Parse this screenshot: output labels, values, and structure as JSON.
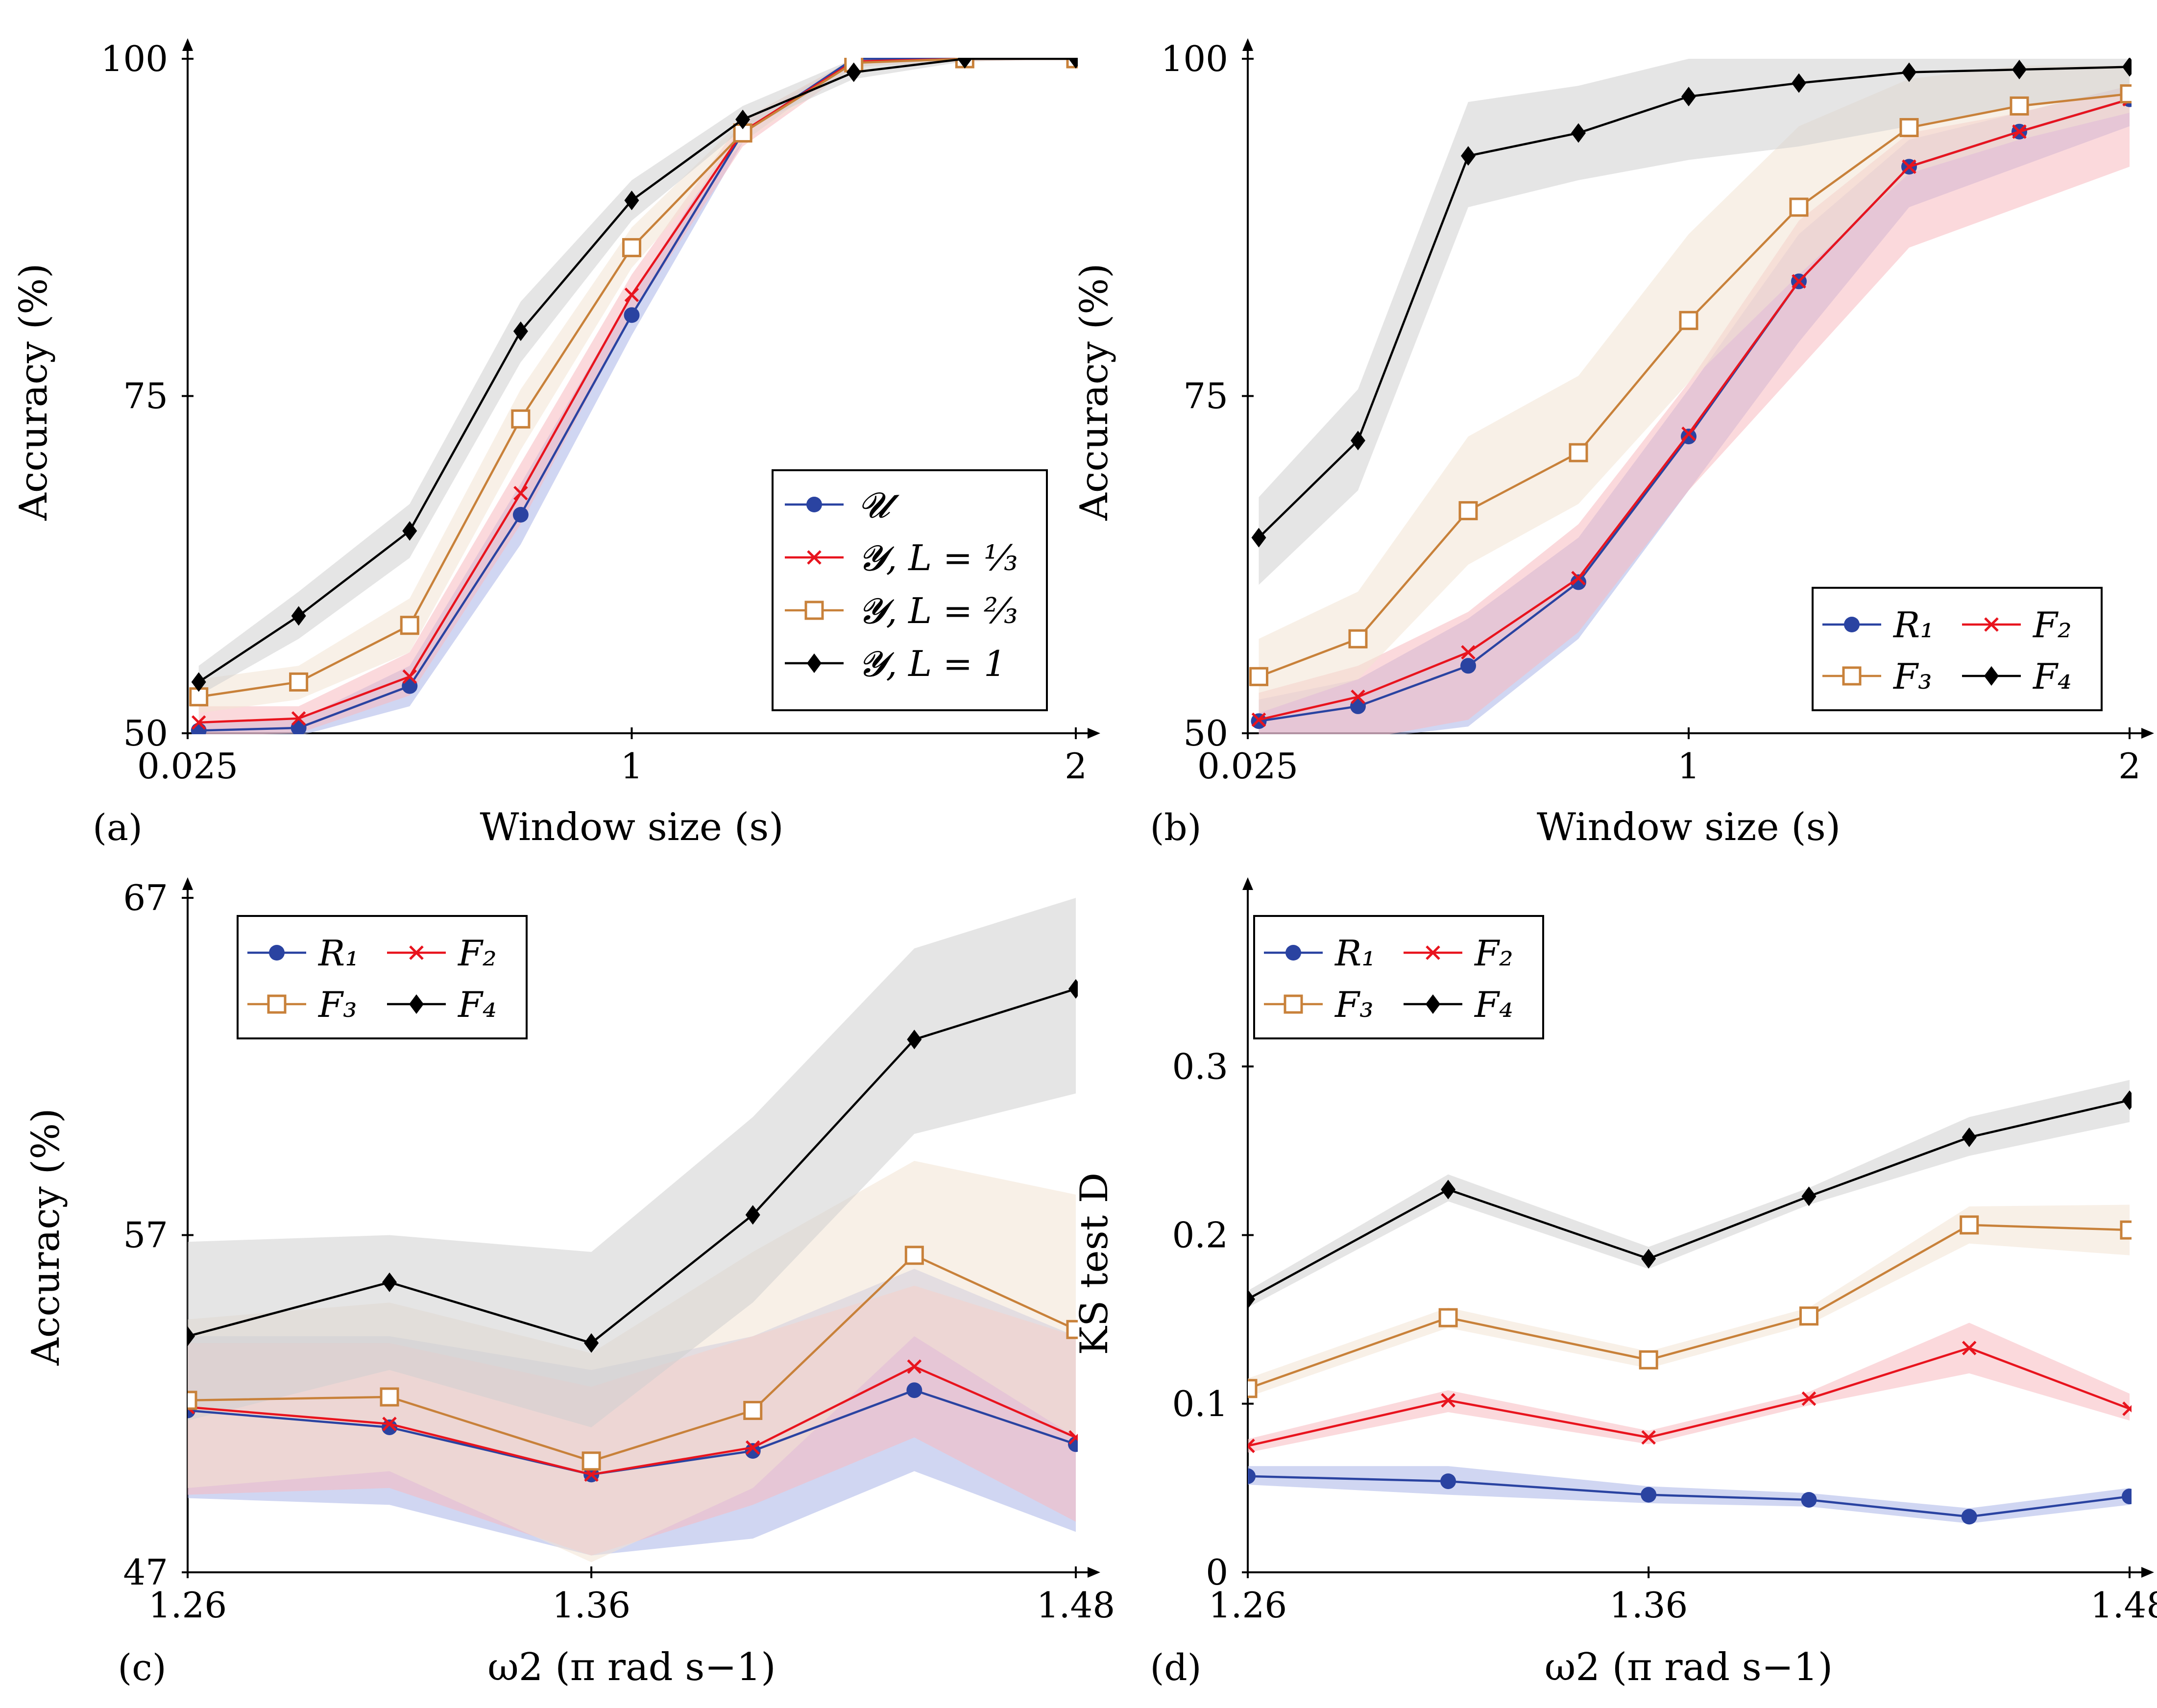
{
  "colors": {
    "blue": "#2a43a1",
    "red": "#e8141e",
    "orange": "#c8813a",
    "black": "#000000",
    "band_blue": "#aab4e8",
    "band_red": "#f7b9bf",
    "band_orange": "#f3e3d3",
    "band_black": "#cfcfcf"
  },
  "chart_data": [
    {
      "id": "a",
      "panel_label": "(a)",
      "type": "line",
      "xlabel": "Window size (s)",
      "ylabel": "Accuracy (%)",
      "xlim": [
        0,
        2
      ],
      "ylim": [
        50,
        100
      ],
      "xticks": [
        0,
        1,
        2
      ],
      "xtick_labels": [
        "0.025",
        "1",
        "2"
      ],
      "yticks": [
        50,
        75,
        100
      ],
      "ytick_labels": [
        "50",
        "75",
        "100"
      ],
      "legend_position": "bottom-right",
      "x": [
        0.025,
        0.25,
        0.5,
        0.75,
        1.0,
        1.25,
        1.5,
        1.75,
        2.0
      ],
      "series": [
        {
          "name": "U",
          "legend_text": "𝓤",
          "color_key": "blue",
          "marker": "circle",
          "values": [
            50.2,
            50.4,
            53.5,
            66.2,
            81.0,
            94.5,
            100,
            100,
            100
          ],
          "band": [
            [
              49.6,
              50.8
            ],
            [
              49.8,
              51.0
            ],
            [
              52.0,
              55.0
            ],
            [
              64.0,
              68.5
            ],
            [
              79.5,
              82.5
            ],
            [
              93.8,
              95.2
            ],
            [
              99.8,
              100
            ],
            [
              100,
              100
            ],
            [
              100,
              100
            ]
          ]
        },
        {
          "name": "Y, L = 1/3",
          "legend_text": "𝓨, L = ⅓",
          "color_key": "red",
          "marker": "cross",
          "values": [
            50.8,
            51.1,
            54.2,
            67.8,
            82.5,
            94.6,
            99.8,
            100,
            100
          ],
          "band": [
            [
              49.8,
              52.0
            ],
            [
              50.0,
              52.0
            ],
            [
              52.8,
              56.0
            ],
            [
              65.5,
              70.0
            ],
            [
              81.0,
              84.0
            ],
            [
              93.5,
              95.5
            ],
            [
              99.4,
              100
            ],
            [
              99.8,
              100
            ],
            [
              100,
              100
            ]
          ]
        },
        {
          "name": "Y, L = 2/3",
          "legend_text": "𝓨, L = ⅔",
          "color_key": "orange",
          "marker": "square",
          "values": [
            52.7,
            53.8,
            58.0,
            73.3,
            86.0,
            94.5,
            99.7,
            100,
            100
          ],
          "band": [
            [
              51.5,
              54.0
            ],
            [
              52.5,
              55.0
            ],
            [
              56.0,
              60.0
            ],
            [
              71.0,
              75.5
            ],
            [
              84.5,
              87.5
            ],
            [
              93.8,
              95.5
            ],
            [
              99.4,
              100
            ],
            [
              99.8,
              100
            ],
            [
              100,
              100
            ]
          ]
        },
        {
          "name": "Y, L = 1",
          "legend_text": "𝓨, L = 1",
          "color_key": "black",
          "marker": "diamond",
          "values": [
            53.8,
            58.7,
            65.0,
            79.8,
            89.5,
            95.5,
            99.0,
            100,
            100
          ],
          "band": [
            [
              52.8,
              55.0
            ],
            [
              57.0,
              60.5
            ],
            [
              63.0,
              67.0
            ],
            [
              77.5,
              82.0
            ],
            [
              88.0,
              91.0
            ],
            [
              94.8,
              96.5
            ],
            [
              98.5,
              100
            ],
            [
              99.8,
              100
            ],
            [
              100,
              100
            ]
          ]
        }
      ]
    },
    {
      "id": "b",
      "panel_label": "(b)",
      "type": "line",
      "xlabel": "Window size (s)",
      "ylabel": "Accuracy (%)",
      "xlim": [
        0,
        2
      ],
      "ylim": [
        50,
        100
      ],
      "xticks": [
        0,
        1,
        2
      ],
      "xtick_labels": [
        "0.025",
        "1",
        "2"
      ],
      "yticks": [
        50,
        75,
        100
      ],
      "ytick_labels": [
        "50",
        "75",
        "100"
      ],
      "legend_position": "bottom-right",
      "x": [
        0.025,
        0.25,
        0.5,
        0.75,
        1.0,
        1.25,
        1.5,
        1.75,
        2.0
      ],
      "series": [
        {
          "name": "R1",
          "legend_text": "R₁",
          "color_key": "blue",
          "marker": "circle",
          "values": [
            50.9,
            52.0,
            55.0,
            61.2,
            72.0,
            83.5,
            92.0,
            94.6,
            97.0
          ],
          "band": [
            [
              49.0,
              52.5
            ],
            [
              49.5,
              54.0
            ],
            [
              50.5,
              58.5
            ],
            [
              57.0,
              64.5
            ],
            [
              68.0,
              75.5
            ],
            [
              79.0,
              87.0
            ],
            [
              89.0,
              94.0
            ],
            [
              92.0,
              96.0
            ],
            [
              95.0,
              98.0
            ]
          ]
        },
        {
          "name": "F2",
          "legend_text": "F₂",
          "color_key": "red",
          "marker": "cross",
          "values": [
            51.0,
            52.7,
            56.0,
            61.5,
            72.2,
            83.5,
            92.0,
            94.6,
            97.0
          ],
          "band": [
            [
              49.0,
              53.0
            ],
            [
              49.5,
              55.0
            ],
            [
              51.0,
              59.0
            ],
            [
              57.5,
              65.5
            ],
            [
              68.0,
              76.0
            ],
            [
              77.0,
              88.0
            ],
            [
              86.0,
              94.5
            ],
            [
              89.0,
              96.0
            ],
            [
              92.0,
              98.0
            ]
          ]
        },
        {
          "name": "F3",
          "legend_text": "F₃",
          "color_key": "orange",
          "marker": "square",
          "values": [
            54.2,
            57.0,
            66.5,
            70.8,
            80.6,
            89.0,
            94.9,
            96.5,
            97.4
          ],
          "band": [
            [
              51.5,
              57.0
            ],
            [
              54.0,
              60.5
            ],
            [
              62.5,
              72.0
            ],
            [
              67.0,
              76.5
            ],
            [
              76.0,
              87.0
            ],
            [
              84.0,
              95.0
            ],
            [
              91.5,
              98.5
            ],
            [
              94.0,
              99.5
            ],
            [
              96.0,
              99.5
            ]
          ]
        },
        {
          "name": "F4",
          "legend_text": "F₄",
          "color_key": "black",
          "marker": "diamond",
          "values": [
            64.5,
            71.7,
            92.8,
            94.5,
            97.2,
            98.2,
            99.0,
            99.2,
            99.4
          ],
          "band": [
            [
              61.0,
              67.5
            ],
            [
              68.0,
              75.5
            ],
            [
              89.0,
              96.8
            ],
            [
              91.0,
              98.0
            ],
            [
              92.5,
              100
            ],
            [
              93.5,
              100
            ],
            [
              95.0,
              100
            ],
            [
              96.5,
              100
            ],
            [
              97.5,
              100
            ]
          ]
        }
      ]
    },
    {
      "id": "c",
      "panel_label": "(c)",
      "type": "line",
      "xlabel": "ω2 (π rad s−1)",
      "ylabel": "Accuracy (%)",
      "xlim": [
        1.26,
        1.48
      ],
      "ylim": [
        47,
        67
      ],
      "xticks": [
        1.26,
        1.36,
        1.48
      ],
      "xtick_labels": [
        "1.26",
        "1.36",
        "1.48"
      ],
      "yticks": [
        47,
        57,
        67
      ],
      "ytick_labels": [
        "47",
        "57",
        "67"
      ],
      "legend_position": "top-left",
      "x": [
        1.26,
        1.31,
        1.36,
        1.4,
        1.44,
        1.48
      ],
      "series": [
        {
          "name": "R1",
          "legend_text": "R₁",
          "color_key": "blue",
          "marker": "circle",
          "values": [
            51.8,
            51.3,
            49.9,
            50.6,
            52.4,
            50.8
          ],
          "band": [
            [
              49.2,
              54.0
            ],
            [
              49.0,
              54.0
            ],
            [
              47.5,
              53.0
            ],
            [
              48.0,
              54.0
            ],
            [
              50.0,
              56.0
            ],
            [
              48.2,
              54.0
            ]
          ]
        },
        {
          "name": "F2",
          "legend_text": "F₂",
          "color_key": "red",
          "marker": "cross",
          "values": [
            51.9,
            51.4,
            49.9,
            50.7,
            53.1,
            51.0
          ],
          "band": [
            [
              49.3,
              53.8
            ],
            [
              49.5,
              53.8
            ],
            [
              47.5,
              52.5
            ],
            [
              49.0,
              54.0
            ],
            [
              51.0,
              55.5
            ],
            [
              48.5,
              54.0
            ]
          ]
        },
        {
          "name": "F3",
          "legend_text": "F₃",
          "color_key": "orange",
          "marker": "square",
          "values": [
            52.1,
            52.2,
            50.3,
            51.8,
            56.4,
            54.2
          ],
          "band": [
            [
              49.5,
              54.5
            ],
            [
              50.0,
              55.0
            ],
            [
              47.3,
              53.5
            ],
            [
              49.5,
              56.5
            ],
            [
              54.0,
              59.2
            ],
            [
              51.0,
              58.2
            ]
          ]
        },
        {
          "name": "F4",
          "legend_text": "F₄",
          "color_key": "black",
          "marker": "diamond",
          "values": [
            54.0,
            55.6,
            53.8,
            57.6,
            62.8,
            64.3
          ],
          "band": [
            [
              51.5,
              56.8
            ],
            [
              53.0,
              57.0
            ],
            [
              51.3,
              56.5
            ],
            [
              55.0,
              60.5
            ],
            [
              60.0,
              65.5
            ],
            [
              61.2,
              67.0
            ]
          ]
        }
      ]
    },
    {
      "id": "d",
      "panel_label": "(d)",
      "type": "line",
      "xlabel": "ω2 (π rad s−1)",
      "ylabel": "KS test D",
      "xlim": [
        1.26,
        1.48
      ],
      "ylim": [
        0,
        0.4
      ],
      "xticks": [
        1.26,
        1.36,
        1.48
      ],
      "xtick_labels": [
        "1.26",
        "1.36",
        "1.48"
      ],
      "yticks": [
        0,
        0.1,
        0.2,
        0.3
      ],
      "ytick_labels": [
        "0",
        "0.1",
        "0.2",
        "0.3"
      ],
      "legend_position": "top-left",
      "x": [
        1.26,
        1.31,
        1.36,
        1.4,
        1.44,
        1.48
      ],
      "series": [
        {
          "name": "R1",
          "legend_text": "R₁",
          "color_key": "blue",
          "marker": "circle",
          "values": [
            0.057,
            0.054,
            0.046,
            0.043,
            0.033,
            0.045
          ],
          "band": [
            [
              0.052,
              0.063
            ],
            [
              0.046,
              0.063
            ],
            [
              0.041,
              0.051
            ],
            [
              0.039,
              0.047
            ],
            [
              0.029,
              0.038
            ],
            [
              0.04,
              0.05
            ]
          ]
        },
        {
          "name": "F2",
          "legend_text": "F₂",
          "color_key": "red",
          "marker": "cross",
          "values": [
            0.075,
            0.102,
            0.08,
            0.103,
            0.133,
            0.097
          ],
          "band": [
            [
              0.071,
              0.079
            ],
            [
              0.095,
              0.108
            ],
            [
              0.076,
              0.084
            ],
            [
              0.099,
              0.107
            ],
            [
              0.118,
              0.148
            ],
            [
              0.09,
              0.106
            ]
          ]
        },
        {
          "name": "F3",
          "legend_text": "F₃",
          "color_key": "orange",
          "marker": "square",
          "values": [
            0.109,
            0.151,
            0.126,
            0.152,
            0.206,
            0.203
          ],
          "band": [
            [
              0.104,
              0.115
            ],
            [
              0.145,
              0.157
            ],
            [
              0.121,
              0.131
            ],
            [
              0.147,
              0.157
            ],
            [
              0.195,
              0.217
            ],
            [
              0.188,
              0.218
            ]
          ]
        },
        {
          "name": "F4",
          "legend_text": "F₄",
          "color_key": "black",
          "marker": "diamond",
          "values": [
            0.162,
            0.227,
            0.186,
            0.223,
            0.258,
            0.28
          ],
          "band": [
            [
              0.157,
              0.167
            ],
            [
              0.22,
              0.236
            ],
            [
              0.18,
              0.193
            ],
            [
              0.218,
              0.228
            ],
            [
              0.247,
              0.27
            ],
            [
              0.267,
              0.292
            ]
          ]
        }
      ]
    }
  ]
}
